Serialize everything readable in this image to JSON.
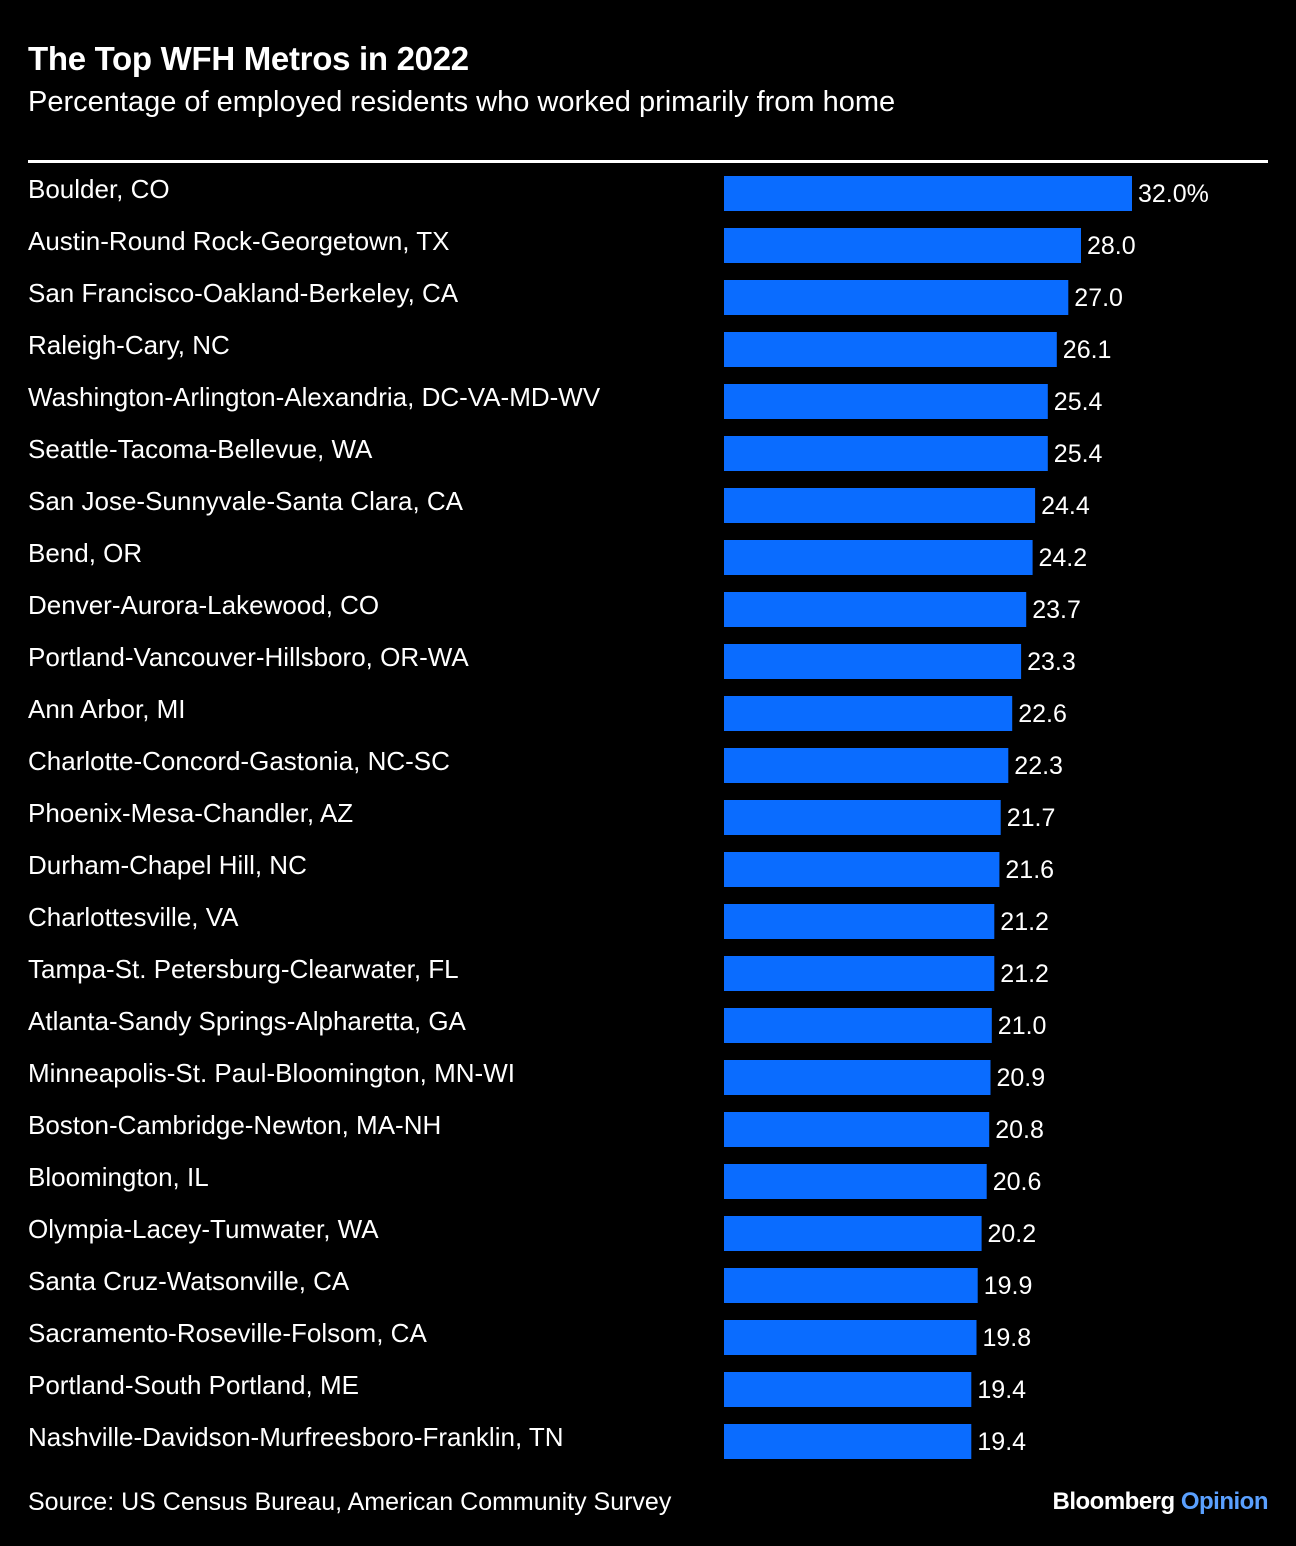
{
  "header": {
    "title": "The Top WFH Metros in 2022",
    "subtitle": "Percentage of employed residents who worked primarily from home"
  },
  "footer": {
    "source": "Source: US Census Bureau, American Community Survey",
    "brand_primary": "Bloomberg",
    "brand_secondary": "Opinion"
  },
  "colors": {
    "background": "#000000",
    "bar": "#0a6cff",
    "text": "#ffffff",
    "brand_accent": "#5aa0ff"
  },
  "chart_data": {
    "type": "bar",
    "orientation": "horizontal",
    "title": "The Top WFH Metros in 2022",
    "subtitle": "Percentage of employed residents who worked primarily from home",
    "categories": [
      "Boulder, CO",
      "Austin-Round Rock-Georgetown, TX",
      "San Francisco-Oakland-Berkeley, CA",
      "Raleigh-Cary, NC",
      "Washington-Arlington-Alexandria, DC-VA-MD-WV",
      "Seattle-Tacoma-Bellevue, WA",
      "San Jose-Sunnyvale-Santa Clara, CA",
      "Bend, OR",
      "Denver-Aurora-Lakewood, CO",
      "Portland-Vancouver-Hillsboro, OR-WA",
      "Ann Arbor, MI",
      "Charlotte-Concord-Gastonia, NC-SC",
      "Phoenix-Mesa-Chandler, AZ",
      "Durham-Chapel Hill, NC",
      "Charlottesville, VA",
      "Tampa-St. Petersburg-Clearwater, FL",
      "Atlanta-Sandy Springs-Alpharetta, GA",
      "Minneapolis-St. Paul-Bloomington, MN-WI",
      "Boston-Cambridge-Newton, MA-NH",
      "Bloomington, IL",
      "Olympia-Lacey-Tumwater, WA",
      "Santa Cruz-Watsonville, CA",
      "Sacramento-Roseville-Folsom, CA",
      "Portland-South Portland, ME",
      "Nashville-Davidson-Murfreesboro-Franklin, TN"
    ],
    "values": [
      32.0,
      28.0,
      27.0,
      26.1,
      25.4,
      25.4,
      24.4,
      24.2,
      23.7,
      23.3,
      22.6,
      22.3,
      21.7,
      21.6,
      21.2,
      21.2,
      21.0,
      20.9,
      20.8,
      20.6,
      20.2,
      19.9,
      19.8,
      19.4,
      19.4
    ],
    "value_labels": [
      "32.0%",
      "28.0",
      "27.0",
      "26.1",
      "25.4",
      "25.4",
      "24.4",
      "24.2",
      "23.7",
      "23.3",
      "22.6",
      "22.3",
      "21.7",
      "21.6",
      "21.2",
      "21.2",
      "21.0",
      "20.9",
      "20.8",
      "20.6",
      "20.2",
      "19.9",
      "19.8",
      "19.4",
      "19.4"
    ],
    "xlim": [
      0,
      32.0
    ],
    "grid": false,
    "legend": "none"
  }
}
